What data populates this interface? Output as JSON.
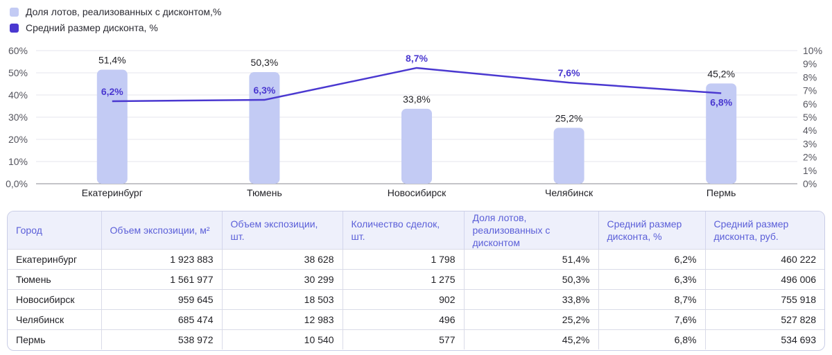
{
  "legend": [
    {
      "label": "Доля лотов, реализованных с дисконтом,%",
      "color": "#c3cbf4"
    },
    {
      "label": "Средний размер дисконта, %",
      "color": "#4a38d0"
    }
  ],
  "chart_data": {
    "type": "bar",
    "categories": [
      "Екатеринбург",
      "Тюмень",
      "Новосибирск",
      "Челябинск",
      "Пермь"
    ],
    "series": [
      {
        "name": "Доля лотов, реализованных с дисконтом,%",
        "type": "bar",
        "axis": "left",
        "values": [
          51.4,
          50.3,
          33.8,
          25.2,
          45.2
        ],
        "labels": [
          "51,4%",
          "50,3%",
          "33,8%",
          "25,2%",
          "45,2%"
        ],
        "color": "#c3cbf4"
      },
      {
        "name": "Средний размер дисконта, %",
        "type": "line",
        "axis": "right",
        "values": [
          6.2,
          6.3,
          8.7,
          7.6,
          6.8
        ],
        "labels": [
          "6,2%",
          "6,3%",
          "8,7%",
          "7,6%",
          "6,8%"
        ],
        "color": "#4a38d0"
      }
    ],
    "y_left": {
      "range": [
        0,
        60
      ],
      "ticks": [
        "0,0%",
        "10%",
        "20%",
        "30%",
        "40%",
        "50%",
        "60%"
      ]
    },
    "y_right": {
      "range": [
        0,
        10
      ],
      "ticks": [
        "0%",
        "1%",
        "2%",
        "3%",
        "4%",
        "5%",
        "6%",
        "7%",
        "8%",
        "9%",
        "10%"
      ]
    },
    "grid": true,
    "legend_position": "top-left"
  },
  "table": {
    "headers": [
      "Город",
      "Объем экспозиции, м²",
      "Объем экспозиции, шт.",
      "Количество сделок, шт.",
      "Доля лотов, реализованных с дисконтом",
      "Средний размер дисконта, %",
      "Средний размер дисконта, руб."
    ],
    "rows": [
      [
        "Екатеринбург",
        "1 923 883",
        "38 628",
        "1 798",
        "51,4%",
        "6,2%",
        "460 222"
      ],
      [
        "Тюмень",
        "1 561 977",
        "30 299",
        "1 275",
        "50,3%",
        "6,3%",
        "496 006"
      ],
      [
        "Новосибирск",
        "959 645",
        "18 503",
        "902",
        "33,8%",
        "8,7%",
        "755 918"
      ],
      [
        "Челябинск",
        "685 474",
        "12 983",
        "496",
        "25,2%",
        "7,6%",
        "527 828"
      ],
      [
        "Пермь",
        "538 972",
        "10 540",
        "577",
        "45,2%",
        "6,8%",
        "534 693"
      ]
    ]
  }
}
